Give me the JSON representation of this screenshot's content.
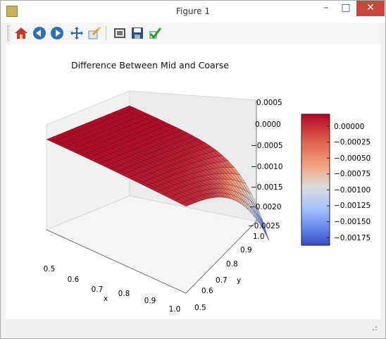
{
  "window": {
    "title": "Figure 1",
    "minimize_glyph": "–",
    "maximize_glyph": "□",
    "close_glyph": "✕"
  },
  "toolbar": {
    "buttons": [
      {
        "name": "home-icon"
      },
      {
        "name": "back-icon"
      },
      {
        "name": "forward-icon"
      },
      {
        "name": "pan-icon"
      },
      {
        "name": "zoom-icon"
      },
      {
        "name": "configure-subplots-icon"
      },
      {
        "name": "save-icon"
      },
      {
        "name": "edit-axis-icon"
      }
    ]
  },
  "chart_data": {
    "type": "surface3d",
    "title": "Difference Between Mid and Coarse",
    "xlabel": "x",
    "ylabel": "y",
    "zlabel": "",
    "x_ticks": [
      "0.5",
      "0.6",
      "0.7",
      "0.8",
      "0.9",
      "1.0"
    ],
    "y_ticks": [
      "0.5",
      "0.6",
      "0.7",
      "0.8",
      "0.9",
      "1.0"
    ],
    "z_ticks": [
      "0.0005",
      "0.0000",
      "−0.0005",
      "−0.0010",
      "−0.0015",
      "−0.0020",
      "−0.0025"
    ],
    "xlim": [
      0.5,
      1.0
    ],
    "ylim": [
      0.5,
      1.0
    ],
    "zlim": [
      -0.0025,
      0.0005
    ],
    "colormap": "coolwarm",
    "colorbar": {
      "ticks": [
        "0.00000",
        "−0.00025",
        "−0.00050",
        "−0.00075",
        "−0.00100",
        "−0.00125",
        "−0.00150",
        "−0.00175"
      ],
      "vmin": -0.00188,
      "vmax": 0.0001
    },
    "surface_summary": {
      "max_value": 0.0001,
      "min_value": -0.0019,
      "min_location": [
        1.0,
        1.0
      ]
    }
  }
}
